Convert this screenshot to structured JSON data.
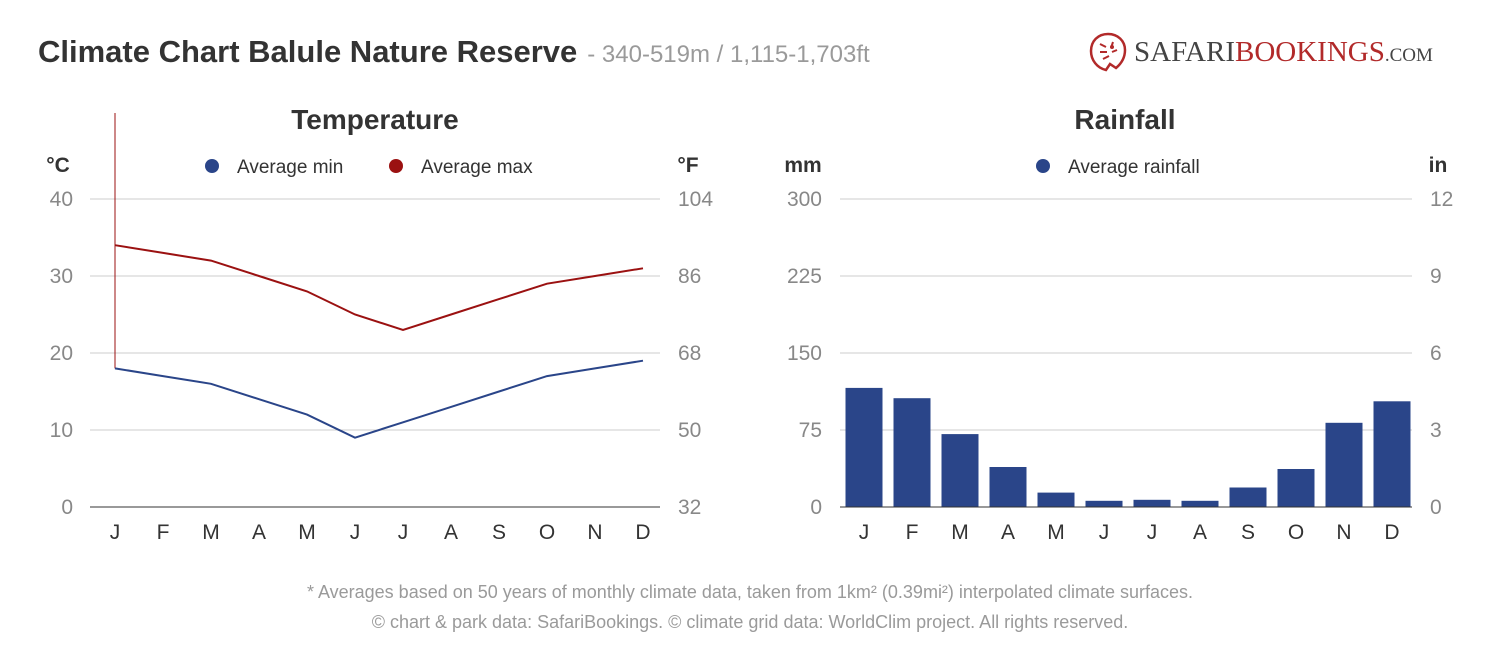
{
  "header": {
    "title": "Climate Chart Balule Nature Reserve",
    "subtitle": "- 340-519m / 1,115-1,703ft"
  },
  "logo": {
    "part1": "SAFARI",
    "part2": "BOOKINGS",
    "part3": ".COM"
  },
  "footer": {
    "note": "* Averages based on 50 years of monthly climate data, taken from 1km² (0.39mi²) interpolated climate surfaces.",
    "credit": "© chart & park data: SafariBookings. © climate grid data: WorldClim project. All rights reserved."
  },
  "colors": {
    "min": "#2a4589",
    "max": "#9b1111",
    "bar": "#2a4589",
    "accent": "#b22a2a"
  },
  "chart_data": [
    {
      "type": "line",
      "title": "Temperature",
      "ylabel_left": "°C",
      "ylabel_right": "°F",
      "categories": [
        "J",
        "F",
        "M",
        "A",
        "M",
        "J",
        "J",
        "A",
        "S",
        "O",
        "N",
        "D"
      ],
      "ylim": [
        0,
        40
      ],
      "yticks_left": [
        "0",
        "10",
        "20",
        "30",
        "40"
      ],
      "yticks_right": [
        "32",
        "50",
        "68",
        "86",
        "104"
      ],
      "grid": true,
      "legend": "top-center",
      "series": [
        {
          "name": "Average min",
          "values": [
            18,
            17,
            16,
            14,
            12,
            9,
            11,
            13,
            15,
            17,
            18,
            19
          ]
        },
        {
          "name": "Average max",
          "values": [
            34,
            33,
            32,
            30,
            28,
            25,
            23,
            25,
            27,
            29,
            30,
            31
          ]
        }
      ]
    },
    {
      "type": "bar",
      "title": "Rainfall",
      "ylabel_left": "mm",
      "ylabel_right": "in",
      "categories": [
        "J",
        "F",
        "M",
        "A",
        "M",
        "J",
        "J",
        "A",
        "S",
        "O",
        "N",
        "D"
      ],
      "ylim": [
        0,
        300
      ],
      "yticks_left": [
        "0",
        "75",
        "150",
        "225",
        "300"
      ],
      "yticks_right": [
        "0",
        "3",
        "6",
        "9",
        "12"
      ],
      "grid": true,
      "legend": "top-center",
      "series": [
        {
          "name": "Average rainfall",
          "values": [
            116,
            106,
            71,
            39,
            14,
            6,
            7,
            6,
            19,
            37,
            82,
            103
          ]
        }
      ]
    }
  ]
}
